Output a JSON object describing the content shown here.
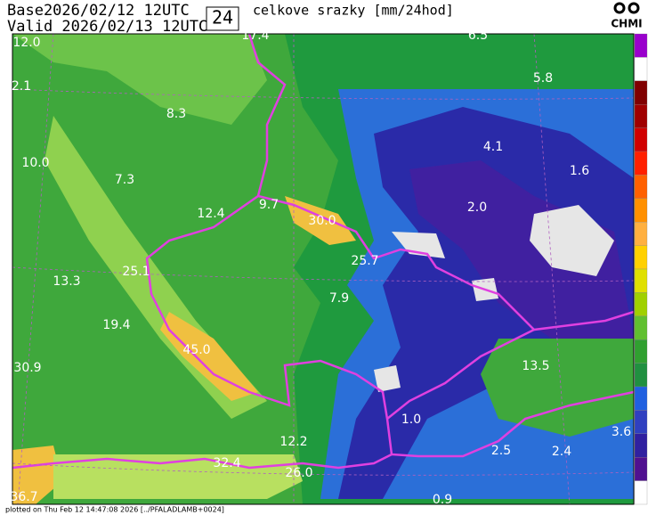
{
  "header": {
    "base": "Base2026/02/12 12UTC",
    "valid": "Valid 2026/02/13 12UTC",
    "period": "24",
    "title": "celkove srazky [mm/24hod]",
    "logo": "CHMI"
  },
  "map": {
    "labels": [
      "17.4",
      "6.5",
      "12.0",
      "5.8",
      "2.1",
      "8.3",
      "4.1",
      "10.0",
      "1.6",
      "7.3",
      "2.0",
      "9.7",
      "12.4",
      "30.0",
      "25.7",
      "25.1",
      "13.3",
      "7.9",
      "19.4",
      "45.0",
      "30.9",
      "13.5",
      "1.0",
      "12.2",
      "3.6",
      "2.5",
      "2.4",
      "32.4",
      "26.0",
      "0.9",
      "36.7"
    ]
  },
  "footer": "plotted on Thu Feb 12 14:47:08 2026 [../PFALADLAMB+0024]"
}
